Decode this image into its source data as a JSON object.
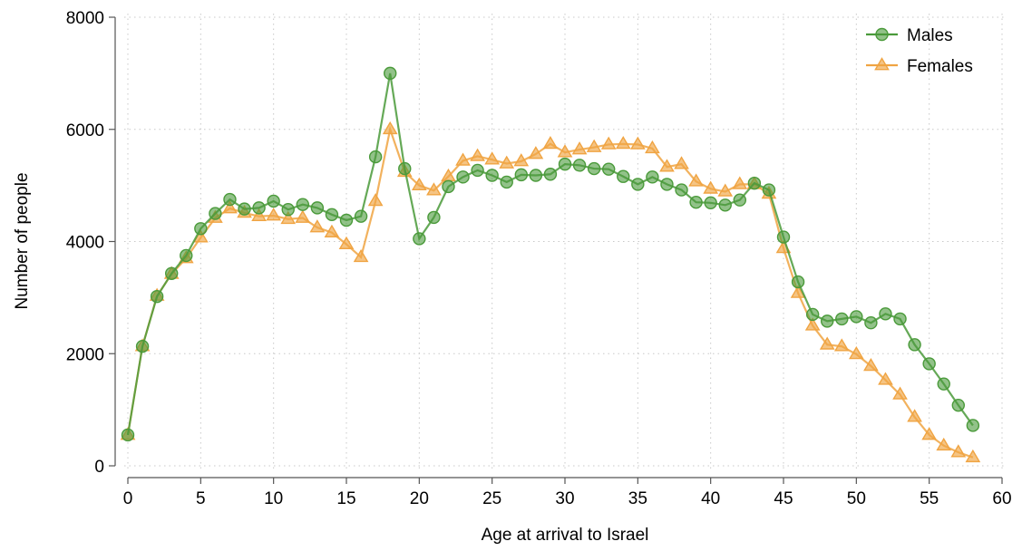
{
  "chart_data": {
    "type": "line",
    "xlabel": "Age at arrival to Israel",
    "ylabel": "Number of people",
    "xlim": [
      0,
      60
    ],
    "ylim": [
      0,
      8000
    ],
    "xticks": [
      "0",
      "5",
      "10",
      "15",
      "20",
      "25",
      "30",
      "35",
      "40",
      "45",
      "50",
      "55",
      "60"
    ],
    "yticks": [
      "0",
      "2000",
      "4000",
      "6000",
      "8000"
    ],
    "grid": true,
    "legend_position": "top-right",
    "x": [
      0,
      1,
      2,
      3,
      4,
      5,
      6,
      7,
      8,
      9,
      10,
      11,
      12,
      13,
      14,
      15,
      16,
      17,
      18,
      19,
      20,
      21,
      22,
      23,
      24,
      25,
      26,
      27,
      28,
      29,
      30,
      31,
      32,
      33,
      34,
      35,
      36,
      37,
      38,
      39,
      40,
      41,
      42,
      43,
      44,
      45,
      46,
      47,
      48,
      49,
      50,
      51,
      52,
      53,
      54,
      55,
      56,
      57,
      58
    ],
    "series": [
      {
        "name": "Males",
        "color": "#4a9a3a",
        "marker": "circle",
        "values": [
          550,
          2130,
          3020,
          3430,
          3750,
          4230,
          4500,
          4750,
          4580,
          4600,
          4720,
          4570,
          4660,
          4600,
          4480,
          4380,
          4450,
          5510,
          7000,
          5300,
          4050,
          4430,
          4980,
          5150,
          5270,
          5180,
          5060,
          5190,
          5180,
          5200,
          5380,
          5360,
          5300,
          5290,
          5160,
          5020,
          5150,
          5020,
          4920,
          4700,
          4690,
          4650,
          4740,
          5040,
          4920,
          4080,
          3280,
          2700,
          2580,
          2620,
          2660,
          2550,
          2710,
          2620,
          2160,
          1820,
          1460,
          1080,
          720
        ]
      },
      {
        "name": "Females",
        "color": "#f0a442",
        "marker": "triangle",
        "values": [
          550,
          2130,
          3030,
          3420,
          3700,
          4070,
          4420,
          4590,
          4510,
          4450,
          4460,
          4400,
          4420,
          4250,
          4160,
          3950,
          3720,
          4720,
          6000,
          5240,
          5000,
          4910,
          5160,
          5440,
          5520,
          5460,
          5390,
          5430,
          5560,
          5740,
          5590,
          5640,
          5680,
          5730,
          5740,
          5730,
          5660,
          5330,
          5380,
          5070,
          4940,
          4890,
          5020,
          5020,
          4850,
          3880,
          3080,
          2500,
          2160,
          2130,
          1990,
          1780,
          1530,
          1270,
          870,
          550,
          360,
          240,
          150
        ]
      }
    ]
  }
}
